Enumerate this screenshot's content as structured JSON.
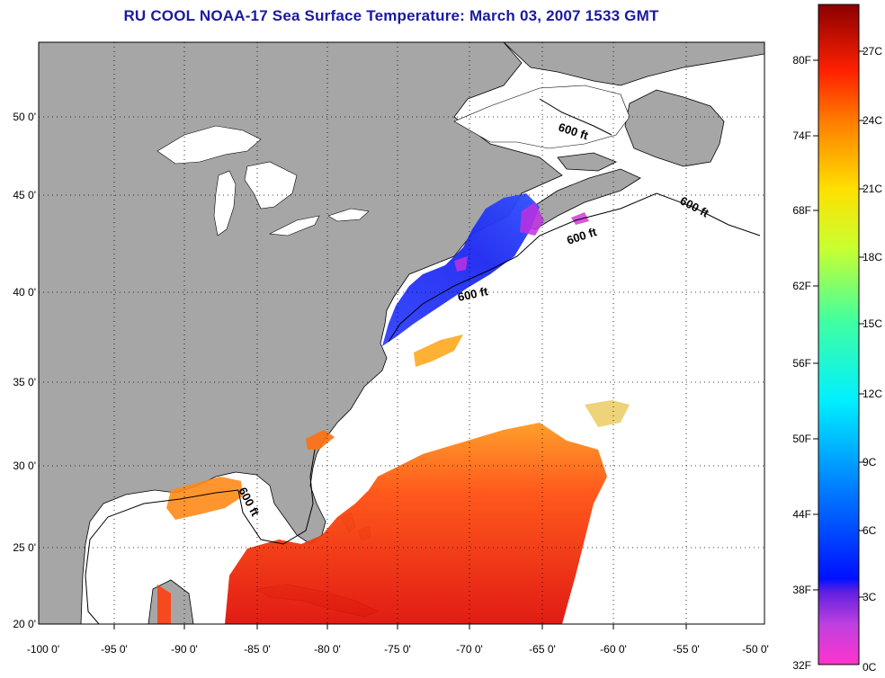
{
  "title": "RU COOL  NOAA-17  Sea Surface Temperature:  March 03, 2007 1533 GMT",
  "map": {
    "lon_ticks": [
      "-100 0'",
      "-95 0'",
      "-90 0'",
      "-85 0'",
      "-80 0'",
      "-75 0'",
      "-70 0'",
      "-65 0'",
      "-60 0'",
      "-55 0'",
      "-50 0'"
    ],
    "lat_ticks": [
      "50 0'",
      "45 0'",
      "40 0'",
      "35 0'",
      "30 0'",
      "25 0'",
      "20 0'"
    ],
    "isobath_labels": [
      "600 ft",
      "600 ft",
      "600 ft",
      "600 ft",
      "600 ft"
    ],
    "colors": {
      "land": "#a6a6a6",
      "ocean_no_data": "#ffffff",
      "grid": "#000000"
    }
  },
  "colorbar": {
    "fahrenheit_labels": [
      "80F",
      "74F",
      "68F",
      "62F",
      "56F",
      "50F",
      "44F",
      "38F",
      "32F"
    ],
    "celsius_labels": [
      "27C",
      "24C",
      "21C",
      "18C",
      "15C",
      "12C",
      "9C",
      "6C",
      "3C",
      "0C"
    ]
  }
}
